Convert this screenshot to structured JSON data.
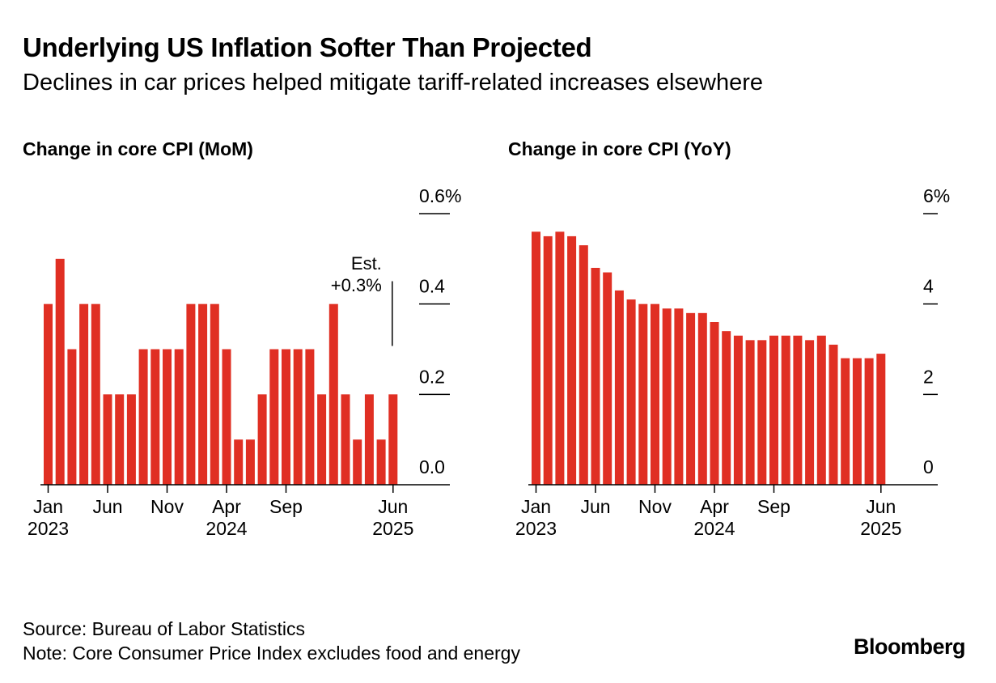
{
  "title": "Underlying US Inflation Softer Than Projected",
  "subtitle": "Declines in car prices helped mitigate tariff-related increases elsewhere",
  "source": "Source: Bureau of Labor Statistics",
  "note": "Note: Core Consumer Price Index excludes food and energy",
  "logo": "Bloomberg",
  "colors": {
    "bar": "#e02f23",
    "axis": "#000000"
  },
  "chart_data": [
    {
      "type": "bar",
      "title": "Change in core CPI (MoM)",
      "ylim": [
        0,
        0.6
      ],
      "yticks": [
        {
          "value": 0.6,
          "label": "0.6%"
        },
        {
          "value": 0.4,
          "label": "0.4"
        },
        {
          "value": 0.2,
          "label": "0.2"
        },
        {
          "value": 0.0,
          "label": "0.0"
        }
      ],
      "x_tick_labels": [
        {
          "index": 0,
          "lines": [
            "Jan",
            "2023"
          ]
        },
        {
          "index": 5,
          "lines": [
            "Jun",
            ""
          ]
        },
        {
          "index": 10,
          "lines": [
            "Nov",
            ""
          ]
        },
        {
          "index": 15,
          "lines": [
            "Apr",
            "2024"
          ]
        },
        {
          "index": 20,
          "lines": [
            "Sep",
            ""
          ]
        },
        {
          "index": 29,
          "lines": [
            "Jun",
            "2025"
          ]
        }
      ],
      "categories": [
        "Jan 2023",
        "Feb 2023",
        "Mar 2023",
        "Apr 2023",
        "May 2023",
        "Jun 2023",
        "Jul 2023",
        "Aug 2023",
        "Sep 2023",
        "Oct 2023",
        "Nov 2023",
        "Dec 2023",
        "Jan 2024",
        "Feb 2024",
        "Mar 2024",
        "Apr 2024",
        "May 2024",
        "Jun 2024",
        "Jul 2024",
        "Aug 2024",
        "Sep 2024",
        "Oct 2024",
        "Nov 2024",
        "Dec 2024",
        "Jan 2025",
        "Feb 2025",
        "Mar 2025",
        "Apr 2025",
        "May 2025",
        "Jun 2025"
      ],
      "values": [
        0.4,
        0.5,
        0.3,
        0.4,
        0.4,
        0.2,
        0.2,
        0.2,
        0.3,
        0.3,
        0.3,
        0.3,
        0.4,
        0.4,
        0.4,
        0.3,
        0.1,
        0.1,
        0.2,
        0.3,
        0.3,
        0.3,
        0.3,
        0.2,
        0.4,
        0.2,
        0.1,
        0.2,
        0.1,
        0.2
      ],
      "annotation": {
        "index": 29,
        "lines": [
          "Est.",
          "+0.3%"
        ],
        "value": 0.3
      },
      "grid": false,
      "legend": "none"
    },
    {
      "type": "bar",
      "title": "Change in core CPI (YoY)",
      "ylim": [
        0,
        6
      ],
      "yticks": [
        {
          "value": 6,
          "label": "6%"
        },
        {
          "value": 4,
          "label": "4"
        },
        {
          "value": 2,
          "label": "2"
        },
        {
          "value": 0,
          "label": "0"
        }
      ],
      "x_tick_labels": [
        {
          "index": 0,
          "lines": [
            "Jan",
            "2023"
          ]
        },
        {
          "index": 5,
          "lines": [
            "Jun",
            ""
          ]
        },
        {
          "index": 10,
          "lines": [
            "Nov",
            ""
          ]
        },
        {
          "index": 15,
          "lines": [
            "Apr",
            "2024"
          ]
        },
        {
          "index": 20,
          "lines": [
            "Sep",
            ""
          ]
        },
        {
          "index": 29,
          "lines": [
            "Jun",
            "2025"
          ]
        }
      ],
      "categories": [
        "Jan 2023",
        "Feb 2023",
        "Mar 2023",
        "Apr 2023",
        "May 2023",
        "Jun 2023",
        "Jul 2023",
        "Aug 2023",
        "Sep 2023",
        "Oct 2023",
        "Nov 2023",
        "Dec 2023",
        "Jan 2024",
        "Feb 2024",
        "Mar 2024",
        "Apr 2024",
        "May 2024",
        "Jun 2024",
        "Jul 2024",
        "Aug 2024",
        "Sep 2024",
        "Oct 2024",
        "Nov 2024",
        "Dec 2024",
        "Jan 2025",
        "Feb 2025",
        "Mar 2025",
        "Apr 2025",
        "May 2025",
        "Jun 2025"
      ],
      "values": [
        5.6,
        5.5,
        5.6,
        5.5,
        5.3,
        4.8,
        4.7,
        4.3,
        4.1,
        4.0,
        4.0,
        3.9,
        3.9,
        3.8,
        3.8,
        3.6,
        3.4,
        3.3,
        3.2,
        3.2,
        3.3,
        3.3,
        3.3,
        3.2,
        3.3,
        3.1,
        2.8,
        2.8,
        2.8,
        2.9
      ],
      "grid": false,
      "legend": "none"
    }
  ]
}
